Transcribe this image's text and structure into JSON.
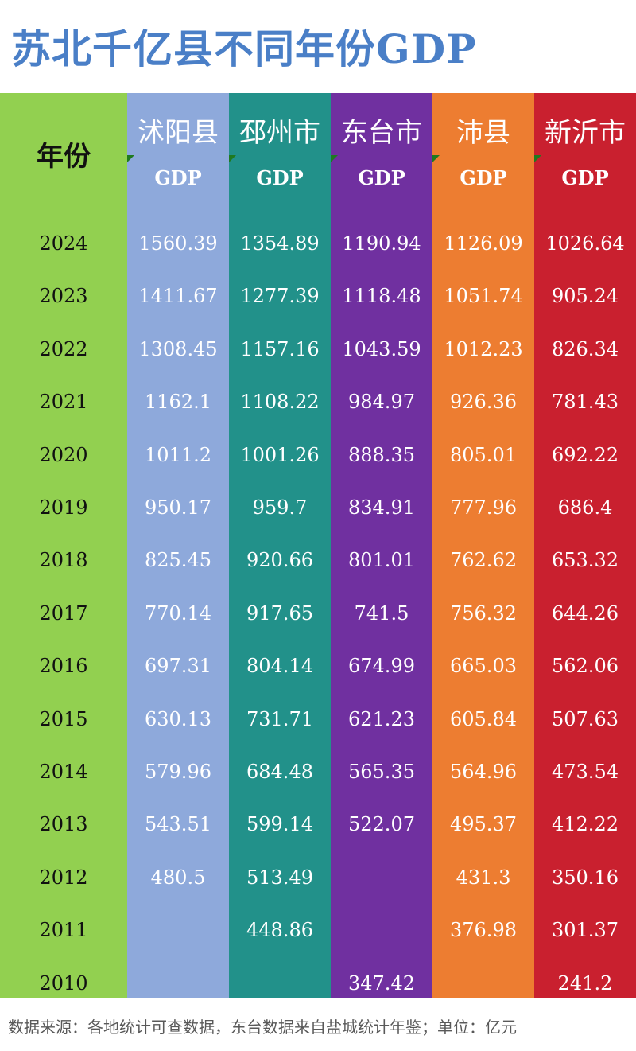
{
  "title": "苏北千亿县不同年份GDP",
  "footer": "数据来源：各地统计可查数据，东台数据来自盐城统计年鉴；单位：亿元",
  "chart_data": {
    "type": "table",
    "year_header": "年份",
    "value_header": "GDP",
    "years": [
      "2024",
      "2023",
      "2022",
      "2021",
      "2020",
      "2019",
      "2018",
      "2017",
      "2016",
      "2015",
      "2014",
      "2013",
      "2012",
      "2011",
      "2010"
    ],
    "series": [
      {
        "name": "沭阳县",
        "color": "#8ea9db",
        "values": [
          "1560.39",
          "1411.67",
          "1308.45",
          "1162.1",
          "1011.2",
          "950.17",
          "825.45",
          "770.14",
          "697.31",
          "630.13",
          "579.96",
          "543.51",
          "480.5",
          "",
          ""
        ]
      },
      {
        "name": "邳州市",
        "color": "#22918a",
        "values": [
          "1354.89",
          "1277.39",
          "1157.16",
          "1108.22",
          "1001.26",
          "959.7",
          "920.66",
          "917.65",
          "804.14",
          "731.71",
          "684.48",
          "599.14",
          "513.49",
          "448.86",
          ""
        ]
      },
      {
        "name": "东台市",
        "color": "#7030a0",
        "values": [
          "1190.94",
          "1118.48",
          "1043.59",
          "984.97",
          "888.35",
          "834.91",
          "801.01",
          "741.5",
          "674.99",
          "621.23",
          "565.35",
          "522.07",
          "",
          "",
          "347.42"
        ]
      },
      {
        "name": "沛县",
        "color": "#ed7d31",
        "values": [
          "1126.09",
          "1051.74",
          "1012.23",
          "926.36",
          "805.01",
          "777.96",
          "762.62",
          "756.32",
          "665.03",
          "605.84",
          "564.96",
          "495.37",
          "431.3",
          "376.98",
          ""
        ]
      },
      {
        "name": "新沂市",
        "color": "#c9202f",
        "values": [
          "1026.64",
          "905.24",
          "826.34",
          "781.43",
          "692.22",
          "686.4",
          "653.32",
          "644.26",
          "562.06",
          "507.63",
          "473.54",
          "412.22",
          "350.16",
          "301.37",
          "241.2"
        ]
      }
    ]
  }
}
